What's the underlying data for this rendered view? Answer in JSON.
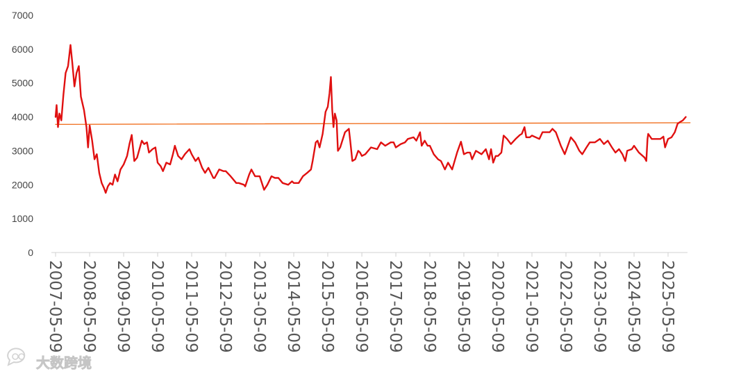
{
  "chart_data": {
    "type": "line",
    "title": "",
    "xlabel": "",
    "ylabel": "",
    "ylim": [
      0,
      7000
    ],
    "yticks": [
      0,
      1000,
      2000,
      3000,
      4000,
      5000,
      6000,
      7000
    ],
    "grid": false,
    "legend": "none",
    "x_tick_labels": [
      "2007-05-09",
      "2008-05-09",
      "2009-05-09",
      "2010-05-09",
      "2011-05-09",
      "2012-05-09",
      "2013-05-09",
      "2014-05-09",
      "2015-05-09",
      "2016-05-09",
      "2017-05-09",
      "2018-05-09",
      "2019-05-09",
      "2020-05-09",
      "2021-05-09",
      "2022-05-09",
      "2023-05-09",
      "2024-05-09",
      "2025-05-09"
    ],
    "series": [
      {
        "color": "#e01010",
        "points": [
          [
            "2007-05-09",
            4000
          ],
          [
            "2007-05-20",
            4350
          ],
          [
            "2007-06-04",
            3700
          ],
          [
            "2007-06-20",
            4100
          ],
          [
            "2007-07-10",
            3900
          ],
          [
            "2007-08-01",
            4650
          ],
          [
            "2007-08-25",
            5300
          ],
          [
            "2007-09-20",
            5500
          ],
          [
            "2007-10-16",
            6124
          ],
          [
            "2007-11-05",
            5600
          ],
          [
            "2007-11-28",
            4900
          ],
          [
            "2007-12-20",
            5300
          ],
          [
            "2008-01-14",
            5500
          ],
          [
            "2008-02-05",
            4600
          ],
          [
            "2008-03-10",
            4200
          ],
          [
            "2008-04-05",
            3700
          ],
          [
            "2008-04-22",
            3100
          ],
          [
            "2008-05-09",
            3750
          ],
          [
            "2008-06-05",
            3300
          ],
          [
            "2008-06-30",
            2750
          ],
          [
            "2008-07-25",
            2900
          ],
          [
            "2008-08-20",
            2350
          ],
          [
            "2008-09-15",
            2050
          ],
          [
            "2008-10-10",
            1900
          ],
          [
            "2008-10-28",
            1760
          ],
          [
            "2008-11-20",
            1950
          ],
          [
            "2008-12-15",
            2050
          ],
          [
            "2009-01-10",
            2000
          ],
          [
            "2009-02-05",
            2300
          ],
          [
            "2009-03-05",
            2100
          ],
          [
            "2009-04-05",
            2450
          ],
          [
            "2009-05-09",
            2600
          ],
          [
            "2009-06-15",
            2850
          ],
          [
            "2009-07-10",
            3200
          ],
          [
            "2009-08-04",
            3470
          ],
          [
            "2009-08-31",
            2700
          ],
          [
            "2009-09-30",
            2800
          ],
          [
            "2009-11-20",
            3300
          ],
          [
            "2009-12-15",
            3200
          ],
          [
            "2010-01-15",
            3250
          ],
          [
            "2010-02-05",
            2950
          ],
          [
            "2010-03-15",
            3050
          ],
          [
            "2010-04-15",
            3100
          ],
          [
            "2010-05-09",
            2650
          ],
          [
            "2010-06-10",
            2550
          ],
          [
            "2010-07-05",
            2400
          ],
          [
            "2010-08-10",
            2650
          ],
          [
            "2010-09-20",
            2600
          ],
          [
            "2010-10-20",
            2900
          ],
          [
            "2010-11-10",
            3150
          ],
          [
            "2010-12-15",
            2850
          ],
          [
            "2011-01-20",
            2750
          ],
          [
            "2011-02-25",
            2900
          ],
          [
            "2011-04-15",
            3050
          ],
          [
            "2011-05-09",
            2900
          ],
          [
            "2011-06-20",
            2700
          ],
          [
            "2011-07-20",
            2800
          ],
          [
            "2011-08-30",
            2500
          ],
          [
            "2011-09-30",
            2350
          ],
          [
            "2011-11-05",
            2500
          ],
          [
            "2011-12-28",
            2200
          ],
          [
            "2012-01-10",
            2200
          ],
          [
            "2012-02-28",
            2450
          ],
          [
            "2012-04-15",
            2400
          ],
          [
            "2012-05-09",
            2400
          ],
          [
            "2012-06-30",
            2250
          ],
          [
            "2012-08-30",
            2050
          ],
          [
            "2012-09-25",
            2050
          ],
          [
            "2012-11-20",
            2000
          ],
          [
            "2012-12-04",
            1950
          ],
          [
            "2013-01-15",
            2300
          ],
          [
            "2013-02-08",
            2450
          ],
          [
            "2013-03-20",
            2250
          ],
          [
            "2013-05-09",
            2250
          ],
          [
            "2013-06-25",
            1850
          ],
          [
            "2013-07-30",
            2000
          ],
          [
            "2013-09-12",
            2250
          ],
          [
            "2013-10-20",
            2200
          ],
          [
            "2013-11-25",
            2200
          ],
          [
            "2014-01-10",
            2050
          ],
          [
            "2014-03-10",
            2000
          ],
          [
            "2014-04-20",
            2100
          ],
          [
            "2014-05-09",
            2050
          ],
          [
            "2014-07-01",
            2050
          ],
          [
            "2014-08-15",
            2250
          ],
          [
            "2014-09-30",
            2350
          ],
          [
            "2014-11-10",
            2450
          ],
          [
            "2014-11-28",
            2700
          ],
          [
            "2014-12-31",
            3250
          ],
          [
            "2015-01-20",
            3300
          ],
          [
            "2015-02-10",
            3100
          ],
          [
            "2015-03-15",
            3500
          ],
          [
            "2015-04-15",
            4150
          ],
          [
            "2015-05-09",
            4300
          ],
          [
            "2015-05-28",
            4700
          ],
          [
            "2015-06-12",
            5178
          ],
          [
            "2015-06-26",
            4200
          ],
          [
            "2015-07-09",
            3700
          ],
          [
            "2015-07-24",
            4100
          ],
          [
            "2015-08-12",
            3900
          ],
          [
            "2015-08-26",
            3000
          ],
          [
            "2015-09-20",
            3100
          ],
          [
            "2015-11-10",
            3550
          ],
          [
            "2015-12-22",
            3650
          ],
          [
            "2016-01-05",
            3300
          ],
          [
            "2016-01-28",
            2700
          ],
          [
            "2016-02-28",
            2750
          ],
          [
            "2016-03-31",
            3000
          ],
          [
            "2016-04-20",
            2950
          ],
          [
            "2016-05-09",
            2850
          ],
          [
            "2016-06-15",
            2900
          ],
          [
            "2016-08-15",
            3100
          ],
          [
            "2016-10-20",
            3050
          ],
          [
            "2016-11-30",
            3250
          ],
          [
            "2017-01-15",
            3150
          ],
          [
            "2017-03-15",
            3250
          ],
          [
            "2017-04-15",
            3250
          ],
          [
            "2017-05-09",
            3100
          ],
          [
            "2017-06-30",
            3200
          ],
          [
            "2017-08-15",
            3250
          ],
          [
            "2017-09-15",
            3350
          ],
          [
            "2017-11-15",
            3400
          ],
          [
            "2017-12-15",
            3300
          ],
          [
            "2018-01-24",
            3550
          ],
          [
            "2018-02-10",
            3150
          ],
          [
            "2018-03-15",
            3300
          ],
          [
            "2018-04-15",
            3150
          ],
          [
            "2018-05-09",
            3150
          ],
          [
            "2018-06-20",
            2900
          ],
          [
            "2018-08-05",
            2750
          ],
          [
            "2018-09-05",
            2700
          ],
          [
            "2018-10-18",
            2450
          ],
          [
            "2018-11-20",
            2650
          ],
          [
            "2019-01-03",
            2450
          ],
          [
            "2019-02-25",
            2950
          ],
          [
            "2019-04-08",
            3270
          ],
          [
            "2019-05-09",
            2900
          ],
          [
            "2019-06-15",
            2950
          ],
          [
            "2019-07-15",
            2950
          ],
          [
            "2019-08-05",
            2750
          ],
          [
            "2019-09-15",
            3000
          ],
          [
            "2019-11-15",
            2900
          ],
          [
            "2019-12-31",
            3050
          ],
          [
            "2020-02-03",
            2750
          ],
          [
            "2020-02-25",
            3050
          ],
          [
            "2020-03-19",
            2650
          ],
          [
            "2020-04-15",
            2850
          ],
          [
            "2020-05-09",
            2850
          ],
          [
            "2020-06-15",
            2950
          ],
          [
            "2020-07-09",
            3450
          ],
          [
            "2020-08-15",
            3350
          ],
          [
            "2020-09-25",
            3200
          ],
          [
            "2020-11-15",
            3350
          ],
          [
            "2020-12-31",
            3470
          ],
          [
            "2021-01-20",
            3500
          ],
          [
            "2021-02-18",
            3700
          ],
          [
            "2021-03-09",
            3400
          ],
          [
            "2021-04-15",
            3400
          ],
          [
            "2021-05-09",
            3450
          ],
          [
            "2021-07-28",
            3350
          ],
          [
            "2021-08-30",
            3550
          ],
          [
            "2021-09-30",
            3550
          ],
          [
            "2021-11-15",
            3550
          ],
          [
            "2021-12-15",
            3650
          ],
          [
            "2022-01-20",
            3550
          ],
          [
            "2022-03-15",
            3150
          ],
          [
            "2022-04-26",
            2900
          ],
          [
            "2022-05-09",
            3000
          ],
          [
            "2022-06-30",
            3400
          ],
          [
            "2022-08-15",
            3250
          ],
          [
            "2022-09-30",
            3000
          ],
          [
            "2022-10-31",
            2900
          ],
          [
            "2022-12-15",
            3100
          ],
          [
            "2023-01-20",
            3250
          ],
          [
            "2023-03-15",
            3250
          ],
          [
            "2023-05-09",
            3350
          ],
          [
            "2023-06-20",
            3200
          ],
          [
            "2023-08-01",
            3300
          ],
          [
            "2023-09-15",
            3100
          ],
          [
            "2023-10-23",
            2950
          ],
          [
            "2023-11-30",
            3050
          ],
          [
            "2024-01-05",
            2900
          ],
          [
            "2024-02-05",
            2700
          ],
          [
            "2024-02-26",
            3000
          ],
          [
            "2024-04-15",
            3050
          ],
          [
            "2024-05-09",
            3150
          ],
          [
            "2024-06-30",
            2950
          ],
          [
            "2024-08-30",
            2800
          ],
          [
            "2024-09-18",
            2700
          ],
          [
            "2024-09-30",
            3350
          ],
          [
            "2024-10-08",
            3500
          ],
          [
            "2024-11-15",
            3350
          ],
          [
            "2024-12-31",
            3350
          ],
          [
            "2025-02-15",
            3350
          ],
          [
            "2025-03-20",
            3420
          ],
          [
            "2025-04-07",
            3100
          ],
          [
            "2025-05-09",
            3350
          ],
          [
            "2025-06-15",
            3400
          ],
          [
            "2025-07-20",
            3550
          ],
          [
            "2025-08-20",
            3800
          ],
          [
            "2025-09-15",
            3850
          ],
          [
            "2025-10-15",
            3900
          ],
          [
            "2025-11-15",
            4000
          ]
        ]
      },
      {
        "color": "#f07020",
        "points": [
          [
            "2007-05-09",
            3780
          ],
          [
            "2025-12-31",
            3830
          ]
        ]
      }
    ]
  },
  "watermark": {
    "text": "大数跨境",
    "icon": "chat-bubble-icon"
  }
}
